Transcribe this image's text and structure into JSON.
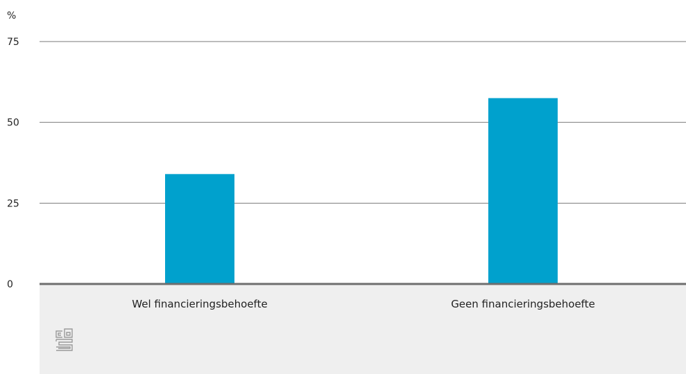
{
  "chart_data": {
    "type": "bar",
    "title": "",
    "xlabel": "",
    "ylabel": "%",
    "categories": [
      "Wel financieringsbehoefte",
      "Geen financieringsbehoefte"
    ],
    "values": [
      34,
      57.5
    ],
    "ylim": [
      0,
      75
    ],
    "yticks": [
      0,
      25,
      50,
      75
    ],
    "grid": true,
    "bar_color": "#00a1cd",
    "grid_color": "#7a7a7a",
    "axis_color": "#6e6e6e",
    "footer_color": "#efefef"
  },
  "logo": {
    "name": "cbs-logo-icon",
    "text": "cbs"
  }
}
